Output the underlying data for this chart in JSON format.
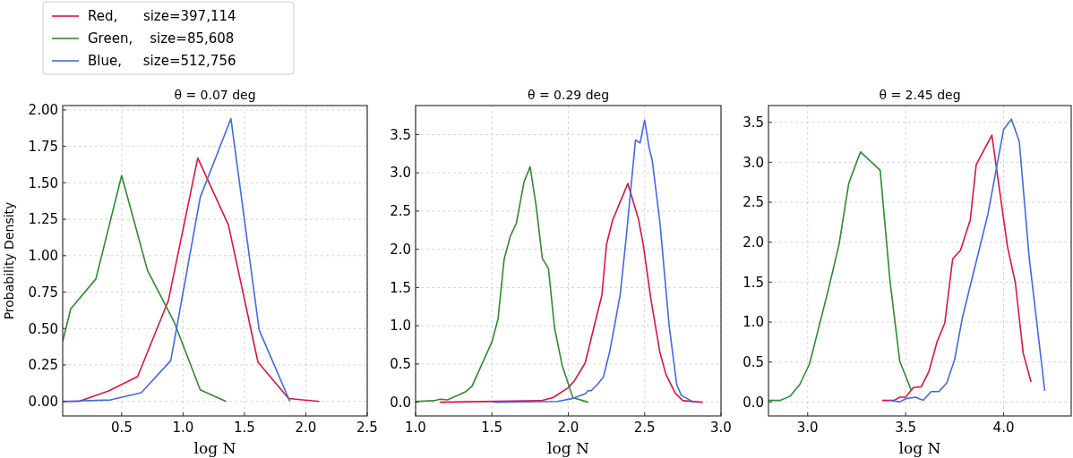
{
  "chart_data": [
    {
      "type": "line",
      "title": "θ = 0.07 deg",
      "xlabel": "log N",
      "ylabel": "Probability Density",
      "xlim": [
        0.02,
        2.5
      ],
      "ylim": [
        -0.1,
        2.03
      ],
      "xticks": [
        {
          "value": 0.5,
          "label": "0.5"
        },
        {
          "value": 1.0,
          "label": "1.0"
        },
        {
          "value": 1.5,
          "label": "1.5"
        },
        {
          "value": 2.0,
          "label": "2.0"
        },
        {
          "value": 2.5,
          "label": "2.5"
        }
      ],
      "yticks": [
        {
          "value": 0,
          "label": "0.00"
        },
        {
          "value": 0.25,
          "label": "0.25"
        },
        {
          "value": 0.5,
          "label": "0.50"
        },
        {
          "value": 0.75,
          "label": "0.75"
        },
        {
          "value": 1,
          "label": "1.00"
        },
        {
          "value": 1.25,
          "label": "1.25"
        },
        {
          "value": 1.5,
          "label": "1.50"
        },
        {
          "value": 1.75,
          "label": "1.75"
        },
        {
          "value": 2,
          "label": "2.00"
        }
      ],
      "grid": true,
      "legend": "top left",
      "line_style": "solid",
      "marker": "none",
      "series": [
        {
          "name": "Red,      size=397,114",
          "color": "#dc143c",
          "x": [
            0.02,
            0.15,
            0.39,
            0.63,
            0.88,
            1.12,
            1.37,
            1.61,
            1.86,
            2.11
          ],
          "values": [
            0,
            0,
            0.07,
            0.17,
            0.69,
            1.67,
            1.21,
            0.27,
            0.02,
            0
          ]
        },
        {
          "name": "Green,    size=85,608",
          "color": "#2e8b2e",
          "x": [
            0.02,
            0.085,
            0.29,
            0.5,
            0.71,
            0.93,
            1.14,
            1.35
          ],
          "values": [
            0.41,
            0.635,
            0.84,
            1.55,
            0.9,
            0.54,
            0.08,
            0
          ]
        },
        {
          "name": "Blue,     size=512,756",
          "color": "#4169e1",
          "x": [
            0.02,
            0.41,
            0.66,
            0.9,
            1.14,
            1.39,
            1.62,
            1.87
          ],
          "values": [
            0,
            0.01,
            0.06,
            0.28,
            1.4,
            1.94,
            0.49,
            0
          ]
        }
      ]
    },
    {
      "type": "line",
      "title": "θ = 0.29 deg",
      "xlabel": "log N",
      "xlim": [
        1.0,
        3.0
      ],
      "ylim": [
        -0.18,
        3.88
      ],
      "xticks": [
        {
          "value": 1.0,
          "label": "1.0"
        },
        {
          "value": 1.5,
          "label": "1.5"
        },
        {
          "value": 2.0,
          "label": "2.0"
        },
        {
          "value": 2.5,
          "label": "2.5"
        },
        {
          "value": 3.0,
          "label": "3.0"
        }
      ],
      "yticks": [
        {
          "value": 0,
          "label": "0.0"
        },
        {
          "value": 0.5,
          "label": "0.5"
        },
        {
          "value": 1,
          "label": "1.0"
        },
        {
          "value": 1.5,
          "label": "1.5"
        },
        {
          "value": 2,
          "label": "2.0"
        },
        {
          "value": 2.5,
          "label": "2.5"
        },
        {
          "value": 3,
          "label": "3.0"
        },
        {
          "value": 3.5,
          "label": "3.5"
        }
      ],
      "grid": true,
      "line_style": "solid",
      "marker": "none",
      "series": [
        {
          "color": "#dc143c",
          "x": [
            1.16,
            1.82,
            1.9,
            2.0,
            2.04,
            2.11,
            2.18,
            2.22,
            2.25,
            2.29,
            2.39,
            2.46,
            2.49,
            2.54,
            2.6,
            2.64,
            2.7,
            2.75,
            2.88
          ],
          "values": [
            0,
            0.02,
            0.06,
            0.19,
            0.28,
            0.51,
            1.08,
            1.4,
            2.06,
            2.38,
            2.86,
            2.39,
            2.07,
            1.36,
            0.65,
            0.36,
            0.12,
            0.02,
            0
          ]
        },
        {
          "color": "#2e8b2e",
          "x": [
            1.0,
            1.12,
            1.16,
            1.21,
            1.33,
            1.37,
            1.5,
            1.54,
            1.58,
            1.62,
            1.66,
            1.71,
            1.75,
            1.79,
            1.83,
            1.87,
            1.91,
            1.96,
            2.03,
            2.13
          ],
          "values": [
            0.01,
            0.02,
            0.04,
            0.03,
            0.14,
            0.21,
            0.79,
            1.09,
            1.87,
            2.17,
            2.34,
            2.88,
            3.08,
            2.56,
            1.88,
            1.75,
            0.97,
            0.48,
            0.06,
            0
          ]
        },
        {
          "color": "#4169e1",
          "x": [
            1.51,
            1.93,
            2.03,
            2.11,
            2.13,
            2.15,
            2.19,
            2.23,
            2.27,
            2.3,
            2.34,
            2.38,
            2.44,
            2.47,
            2.5,
            2.53,
            2.55,
            2.6,
            2.66,
            2.69,
            2.71,
            2.74,
            2.82
          ],
          "values": [
            0,
            0.01,
            0.05,
            0.11,
            0.15,
            0.15,
            0.23,
            0.33,
            0.65,
            0.97,
            1.41,
            2.17,
            3.43,
            3.39,
            3.69,
            3.32,
            3.16,
            2.35,
            1.01,
            0.54,
            0.23,
            0.09,
            0
          ]
        }
      ]
    },
    {
      "type": "line",
      "title": "θ = 2.45 deg",
      "xlabel": "log N",
      "xlim": [
        2.8,
        4.345
      ],
      "ylim": [
        -0.175,
        3.71
      ],
      "xticks": [
        {
          "value": 3.0,
          "label": "3.0"
        },
        {
          "value": 3.5,
          "label": "3.5"
        },
        {
          "value": 4.0,
          "label": "4.0"
        }
      ],
      "yticks": [
        {
          "value": 0,
          "label": "0.0"
        },
        {
          "value": 0.5,
          "label": "0.5"
        },
        {
          "value": 1,
          "label": "1.0"
        },
        {
          "value": 1.5,
          "label": "1.5"
        },
        {
          "value": 2,
          "label": "2.0"
        },
        {
          "value": 2.5,
          "label": "2.5"
        },
        {
          "value": 3,
          "label": "3.0"
        },
        {
          "value": 3.5,
          "label": "3.5"
        }
      ],
      "grid": true,
      "line_style": "solid",
      "marker": "none",
      "series": [
        {
          "color": "#dc143c",
          "x": [
            3.38,
            3.44,
            3.47,
            3.5,
            3.54,
            3.58,
            3.62,
            3.66,
            3.7,
            3.74,
            3.78,
            3.83,
            3.86,
            3.94,
            3.98,
            4.02,
            4.06,
            4.1,
            4.14
          ],
          "values": [
            0.02,
            0.02,
            0.06,
            0.06,
            0.18,
            0.19,
            0.39,
            0.75,
            0.99,
            1.79,
            1.9,
            2.28,
            2.97,
            3.34,
            2.64,
            1.94,
            1.49,
            0.61,
            0.25
          ]
        },
        {
          "color": "#2e8b2e",
          "x": [
            2.8,
            2.86,
            2.91,
            2.96,
            3.01,
            3.11,
            3.16,
            3.21,
            3.27,
            3.37,
            3.42,
            3.47,
            3.53
          ],
          "values": [
            0.02,
            0.02,
            0.07,
            0.22,
            0.48,
            1.45,
            1.97,
            2.74,
            3.13,
            2.9,
            1.52,
            0.51,
            0.14
          ]
        },
        {
          "color": "#4169e1",
          "x": [
            3.42,
            3.47,
            3.5,
            3.55,
            3.59,
            3.63,
            3.67,
            3.71,
            3.75,
            3.79,
            3.92,
            4.0,
            4.04,
            4.08,
            4.13,
            4.21
          ],
          "values": [
            0.02,
            0,
            0.04,
            0.06,
            0.02,
            0.13,
            0.13,
            0.24,
            0.53,
            1.06,
            2.35,
            3.41,
            3.54,
            3.26,
            1.82,
            0.14
          ]
        }
      ]
    }
  ]
}
